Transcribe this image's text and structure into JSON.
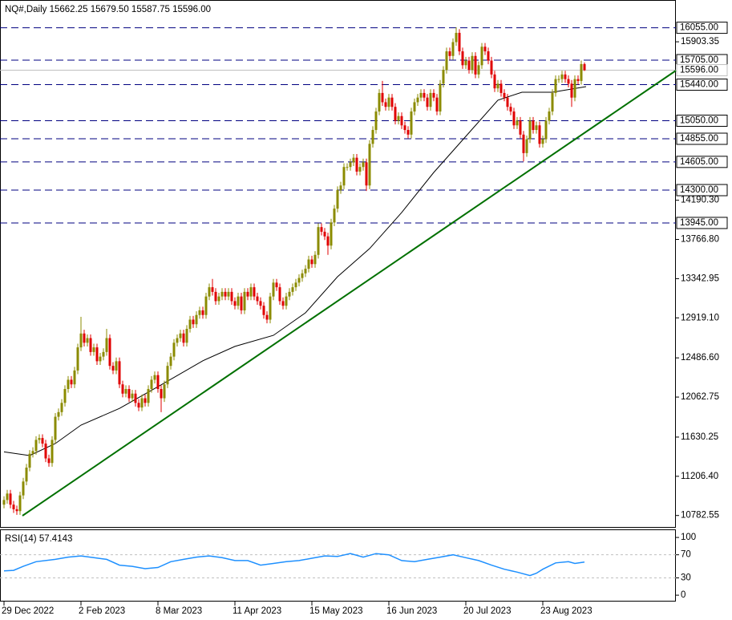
{
  "chart_data": [
    {
      "type": "candlestick",
      "title": "NQ#,Daily  15662.25 15679.50 15587.75 15596.00",
      "up_color": "#8b8b00",
      "down_color": "#e00000",
      "xlim": [
        -1.25,
        209.5
      ],
      "ylim": [
        10650,
        16355
      ],
      "xticks": [
        {
          "value": 0,
          "label": "29 Dec 2022"
        },
        {
          "value": 24,
          "label": "2 Feb 2023"
        },
        {
          "value": 48,
          "label": "8 Mar 2023"
        },
        {
          "value": 72,
          "label": "11 Apr 2023"
        },
        {
          "value": 96,
          "label": "15 May 2023"
        },
        {
          "value": 120,
          "label": "16 Jun 2023"
        },
        {
          "value": 144,
          "label": "20 Jul 2023"
        },
        {
          "value": 168,
          "label": "23 Aug 2023"
        }
      ],
      "yticks": [
        15903.35,
        {
          "value": 14190.3,
          "label": "14190.30"
        },
        {
          "value": 13766.8,
          "label": "13766.80"
        },
        13342.95,
        {
          "value": 12919.1,
          "label": "12919.10"
        },
        {
          "value": 12486.6,
          "label": "12486.60"
        },
        12062.75,
        11630.25,
        {
          "value": 11206.4,
          "label": "11206.40"
        },
        10782.55
      ],
      "levels": [
        {
          "value": 16055,
          "label": "16055.00"
        },
        {
          "value": 15705,
          "label": "15705.00"
        },
        {
          "value": 15440,
          "label": "15440.00"
        },
        {
          "value": 15050,
          "label": "15050.00"
        },
        {
          "value": 14855,
          "label": "14855.00"
        },
        {
          "value": 14605,
          "label": "14605.00"
        },
        {
          "value": 14300,
          "label": "14300.00"
        },
        {
          "value": 13945,
          "label": "13945.00"
        }
      ],
      "level_color": "#000080",
      "current_price": {
        "value": 15596,
        "label": "15596.00"
      },
      "open": [
        10900,
        10950,
        11020,
        10900,
        10850,
        10830,
        11000,
        11150,
        11300,
        11450,
        11480,
        11600,
        11620,
        11560,
        11400,
        11350,
        11600,
        11850,
        11900,
        12000,
        12150,
        12250,
        12200,
        12350,
        12600,
        12750,
        12650,
        12700,
        12550,
        12600,
        12450,
        12500,
        12550,
        12700,
        12400,
        12350,
        12450,
        12200,
        12100,
        12150,
        12050,
        12100,
        12000,
        11950,
        12050,
        12000,
        12150,
        12250,
        12300,
        12150,
        12050,
        12200,
        12400,
        12500,
        12650,
        12700,
        12750,
        12650,
        12800,
        12900,
        12850,
        12950,
        13000,
        12950,
        13150,
        13250,
        13200,
        13100,
        13150,
        13200,
        13150,
        13200,
        13100,
        13050,
        13150,
        13000,
        13200,
        13150,
        13250,
        13150,
        13100,
        13050,
        12950,
        12900,
        13150,
        13300,
        13250,
        13100,
        13050,
        13150,
        13200,
        13250,
        13300,
        13350,
        13400,
        13450,
        13550,
        13500,
        13600,
        13900,
        13850,
        13800,
        13700,
        13950,
        14100,
        14300,
        14350,
        14550,
        14550,
        14600,
        14650,
        14500,
        14550,
        14600,
        14350,
        14800,
        14950,
        15150,
        15350,
        15250,
        15200,
        15300,
        15200,
        15050,
        15100,
        15000,
        14950,
        14900,
        15150,
        15250,
        15300,
        15350,
        15300,
        15200,
        15350,
        15300,
        15150,
        15450,
        15600,
        15800,
        15750,
        15900,
        16000,
        15800,
        15650,
        15700,
        15600,
        15750,
        15550,
        15650,
        15850,
        15800,
        15700,
        15550,
        15400,
        15450,
        15350,
        15300,
        15200,
        15150,
        15000,
        15050,
        14900,
        14700,
        14850,
        15050,
        14950,
        15000,
        14800,
        14850,
        15050,
        15150,
        15350,
        15500,
        15500,
        15550,
        15500,
        15450,
        15300,
        15500,
        15480,
        15662.25
      ],
      "high": [
        10990,
        11060,
        11060,
        10940,
        10890,
        11040,
        11190,
        11340,
        11490,
        11520,
        11640,
        11660,
        11660,
        11600,
        11440,
        11640,
        11890,
        11940,
        12040,
        12190,
        12290,
        12290,
        12390,
        12640,
        12930,
        12790,
        12740,
        12740,
        12640,
        12640,
        12540,
        12590,
        12800,
        12740,
        12440,
        12490,
        12490,
        12240,
        12190,
        12190,
        12140,
        12140,
        12040,
        12090,
        12090,
        12190,
        12290,
        12340,
        12340,
        12190,
        12240,
        12440,
        12540,
        12690,
        12740,
        12790,
        12790,
        12840,
        12940,
        12940,
        12990,
        13040,
        13040,
        13190,
        13290,
        13340,
        13240,
        13190,
        13240,
        13240,
        13240,
        13240,
        13140,
        13190,
        13190,
        13240,
        13240,
        13290,
        13290,
        13190,
        13140,
        13090,
        12990,
        13190,
        13340,
        13340,
        13290,
        13140,
        13190,
        13240,
        13290,
        13340,
        13390,
        13440,
        13490,
        13590,
        13590,
        13640,
        13940,
        13940,
        13890,
        13840,
        13990,
        14140,
        14340,
        14390,
        14590,
        14590,
        14640,
        14690,
        14690,
        14590,
        14640,
        14640,
        14840,
        14990,
        15190,
        15390,
        15480,
        15290,
        15340,
        15340,
        15240,
        15140,
        15140,
        15040,
        14990,
        15190,
        15290,
        15340,
        15390,
        15390,
        15340,
        15390,
        15390,
        15340,
        15490,
        15640,
        15840,
        15840,
        15940,
        16060,
        16040,
        15840,
        15740,
        15740,
        15790,
        15790,
        15690,
        15890,
        15890,
        15840,
        15740,
        15590,
        15490,
        15490,
        15390,
        15340,
        15240,
        15190,
        15090,
        15090,
        14940,
        14890,
        15090,
        15090,
        15040,
        15040,
        14890,
        15090,
        15190,
        15390,
        15540,
        15540,
        15590,
        15590,
        15540,
        15490,
        15540,
        15540,
        15702,
        15679.5
      ],
      "low": [
        10860,
        10910,
        10860,
        10810,
        10790,
        10790,
        10960,
        11110,
        11260,
        11410,
        11440,
        11560,
        11520,
        11360,
        11310,
        11310,
        11560,
        11810,
        11860,
        11960,
        12110,
        12160,
        12160,
        12310,
        12560,
        12610,
        12610,
        12510,
        12510,
        12410,
        12410,
        12460,
        12510,
        12360,
        12310,
        12310,
        12160,
        12060,
        12060,
        12010,
        12010,
        11960,
        11910,
        11910,
        11960,
        11960,
        12110,
        12210,
        12110,
        11900,
        12010,
        12160,
        12360,
        12460,
        12610,
        12660,
        12610,
        12610,
        12760,
        12810,
        12810,
        12910,
        12910,
        12910,
        13110,
        13160,
        13060,
        13060,
        13110,
        13110,
        13110,
        13060,
        13010,
        13010,
        12960,
        12960,
        13110,
        13110,
        13110,
        13060,
        13010,
        12910,
        12860,
        12860,
        13110,
        13210,
        13060,
        13010,
        13010,
        13110,
        13160,
        13210,
        13260,
        13310,
        13360,
        13410,
        13460,
        13460,
        13560,
        13810,
        13760,
        13600,
        13660,
        13910,
        14060,
        14260,
        14310,
        14510,
        14510,
        14560,
        14460,
        14460,
        14510,
        14290,
        14310,
        14760,
        14910,
        15110,
        15210,
        15160,
        15160,
        15160,
        15010,
        15010,
        14960,
        14910,
        14860,
        14860,
        15110,
        15210,
        15260,
        15260,
        15160,
        15160,
        15260,
        15110,
        15110,
        15410,
        15560,
        15710,
        15710,
        15860,
        15760,
        15610,
        15610,
        15560,
        15560,
        15510,
        15510,
        15610,
        15760,
        15660,
        15510,
        15360,
        15360,
        15310,
        15260,
        15160,
        15110,
        14960,
        14960,
        14860,
        14610,
        14660,
        14810,
        14910,
        14910,
        14760,
        14760,
        14810,
        15010,
        15110,
        15310,
        15460,
        15460,
        15460,
        15410,
        15200,
        15260,
        15440,
        15440,
        15587.75
      ],
      "close": [
        10950,
        11020,
        10900,
        10850,
        10830,
        11000,
        11150,
        11300,
        11450,
        11480,
        11600,
        11620,
        11560,
        11400,
        11350,
        11600,
        11850,
        11900,
        12000,
        12150,
        12250,
        12200,
        12350,
        12600,
        12750,
        12650,
        12700,
        12550,
        12600,
        12450,
        12500,
        12550,
        12700,
        12400,
        12350,
        12450,
        12200,
        12100,
        12150,
        12050,
        12100,
        12000,
        11950,
        12050,
        12000,
        12150,
        12250,
        12300,
        12150,
        12050,
        12200,
        12400,
        12500,
        12650,
        12700,
        12750,
        12650,
        12800,
        12900,
        12850,
        12950,
        13000,
        12950,
        13150,
        13250,
        13200,
        13100,
        13150,
        13200,
        13150,
        13200,
        13100,
        13050,
        13150,
        13000,
        13200,
        13150,
        13250,
        13150,
        13100,
        13050,
        12950,
        12900,
        13150,
        13300,
        13250,
        13100,
        13050,
        13150,
        13200,
        13250,
        13300,
        13350,
        13400,
        13450,
        13550,
        13500,
        13600,
        13900,
        13850,
        13800,
        13700,
        13950,
        14100,
        14300,
        14350,
        14550,
        14550,
        14600,
        14650,
        14500,
        14550,
        14600,
        14350,
        14800,
        14950,
        15150,
        15350,
        15250,
        15200,
        15300,
        15200,
        15050,
        15100,
        15000,
        14950,
        14900,
        15150,
        15250,
        15300,
        15350,
        15300,
        15200,
        15350,
        15300,
        15150,
        15450,
        15600,
        15800,
        15750,
        15900,
        16000,
        15800,
        15650,
        15700,
        15600,
        15750,
        15550,
        15650,
        15850,
        15800,
        15700,
        15550,
        15400,
        15450,
        15350,
        15300,
        15200,
        15150,
        15000,
        15050,
        14900,
        14700,
        14850,
        15050,
        14950,
        15000,
        14800,
        14850,
        15050,
        15150,
        15350,
        15500,
        15500,
        15550,
        15500,
        15450,
        15300,
        15500,
        15480,
        15662,
        15596
      ],
      "ma": {
        "color": "#000000",
        "x": [
          0,
          8,
          16,
          24,
          36,
          49,
          62,
          72,
          84,
          94,
          104,
          114,
          124,
          134,
          144,
          154,
          161.5,
          171,
          181.5
        ],
        "values": [
          11470,
          11430,
          11560,
          11760,
          11940,
          12195,
          12455,
          12610,
          12730,
          12974,
          13364,
          13668,
          14058,
          14491,
          14881,
          15272,
          15358,
          15358,
          15419
        ]
      },
      "trendline": {
        "color": "#007000",
        "x": [
          5.75,
          209.5
        ],
        "values": [
          10780,
          15592
        ]
      }
    },
    {
      "type": "line",
      "title": "RSI(14) 57.4143",
      "xlim": [
        -1.25,
        209.5
      ],
      "ylim": [
        -11,
        114
      ],
      "yticks": [
        100,
        70,
        30,
        0
      ],
      "levels": [
        70,
        30
      ],
      "series": [
        {
          "color": "#1e90ff",
          "x": [
            0,
            3,
            6,
            10,
            16,
            20,
            24,
            28,
            32,
            36,
            40,
            44,
            48,
            52,
            56,
            60,
            64,
            68,
            72,
            76,
            80,
            84,
            88,
            92,
            96,
            100,
            104,
            108,
            112,
            116,
            120,
            124,
            128,
            132,
            136,
            140,
            144,
            148,
            152,
            156,
            160,
            164,
            166,
            168,
            172,
            176,
            178,
            181
          ],
          "values": [
            42,
            43,
            50,
            58,
            62,
            66,
            68,
            65,
            62,
            52,
            50,
            46,
            48,
            58,
            62,
            66,
            68,
            65,
            60,
            60,
            52,
            55,
            58,
            60,
            64,
            68,
            67,
            72,
            66,
            72,
            70,
            60,
            58,
            62,
            66,
            70,
            65,
            60,
            52,
            45,
            40,
            34,
            38,
            45,
            56,
            58,
            55,
            57.4143
          ]
        }
      ]
    }
  ]
}
